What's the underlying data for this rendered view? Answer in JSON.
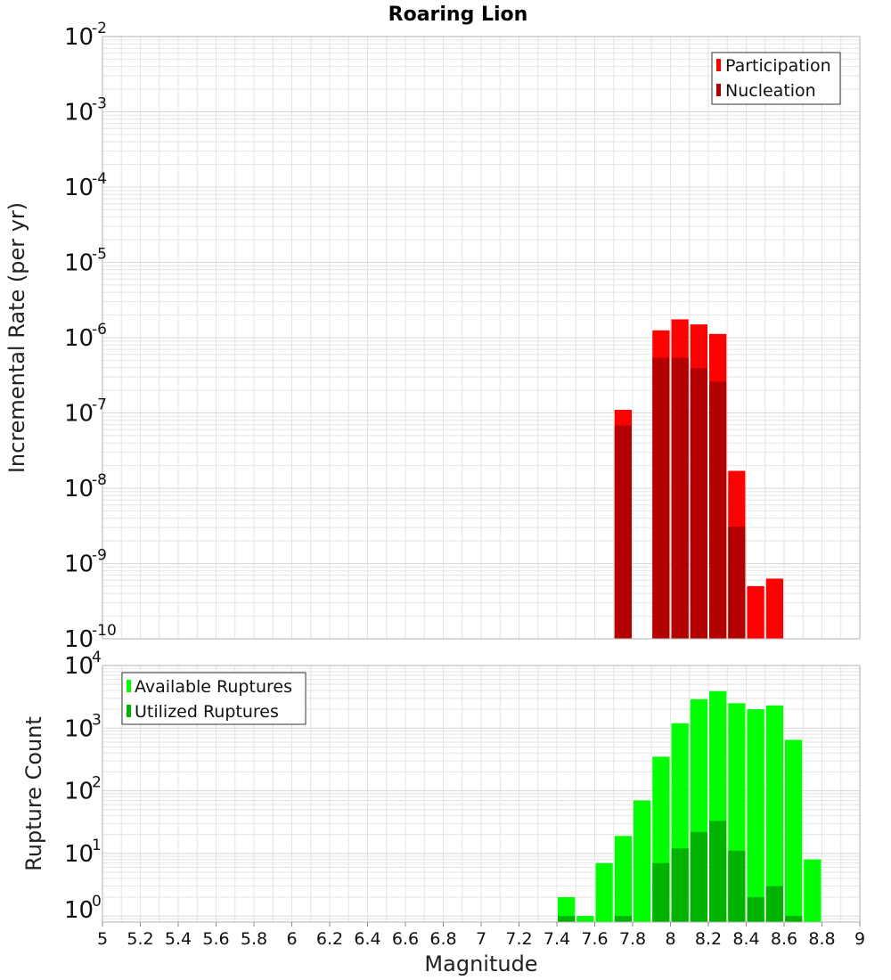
{
  "colors": {
    "participation": "#ff0000",
    "nucleation": "#b30000",
    "available": "#00ff00",
    "utilized": "#00b300",
    "grid": "#e4e4e4",
    "border": "#b0b0b0"
  },
  "chart_data": [
    {
      "id": "rate",
      "type": "bar",
      "title": "Roaring Lion",
      "ylabel": "Incremental Rate (per yr)",
      "xlabel": "",
      "yscale": "log",
      "xlim": [
        5,
        9
      ],
      "ylim": [
        1e-10,
        0.01
      ],
      "yticks": [
        {
          "base": "10",
          "exp": "-10"
        },
        {
          "base": "10",
          "exp": "-9"
        },
        {
          "base": "10",
          "exp": "-8"
        },
        {
          "base": "10",
          "exp": "-7"
        },
        {
          "base": "10",
          "exp": "-6"
        },
        {
          "base": "10",
          "exp": "-5"
        },
        {
          "base": "10",
          "exp": "-4"
        },
        {
          "base": "10",
          "exp": "-3"
        },
        {
          "base": "10",
          "exp": "-2"
        }
      ],
      "legend": {
        "position": "top-right",
        "entries": [
          "Participation",
          "Nucleation"
        ]
      },
      "series": [
        {
          "name": "Participation",
          "x": [
            7.75,
            7.95,
            8.05,
            8.15,
            8.25,
            8.35,
            8.45,
            8.55
          ],
          "values": [
            1.1e-07,
            1.25e-06,
            1.75e-06,
            1.5e-06,
            1.12e-06,
            1.7e-08,
            5e-10,
            6.3e-10
          ]
        },
        {
          "name": "Nucleation",
          "x": [
            7.75,
            7.95,
            8.05,
            8.15,
            8.25,
            8.35
          ],
          "values": [
            6.8e-08,
            5.4e-07,
            5.4e-07,
            3.9e-07,
            2.6e-07,
            3.1e-09
          ]
        }
      ]
    },
    {
      "id": "count",
      "type": "bar",
      "title": "",
      "ylabel": "Rupture Count",
      "xlabel": "Magnitude",
      "yscale": "log",
      "xlim": [
        5,
        9
      ],
      "ylim": [
        0.8,
        10000
      ],
      "yticks": [
        {
          "base": "10",
          "exp": "0"
        },
        {
          "base": "10",
          "exp": "1"
        },
        {
          "base": "10",
          "exp": "2"
        },
        {
          "base": "10",
          "exp": "3"
        },
        {
          "base": "10",
          "exp": "4"
        }
      ],
      "xticks": [
        "5",
        "5.2",
        "5.4",
        "5.6",
        "5.8",
        "6",
        "6.2",
        "6.4",
        "6.6",
        "6.8",
        "7",
        "7.2",
        "7.4",
        "7.6",
        "7.8",
        "8",
        "8.2",
        "8.4",
        "8.6",
        "8.8",
        "9"
      ],
      "legend": {
        "position": "top-left",
        "entries": [
          "Available Ruptures",
          "Utilized Ruptures"
        ]
      },
      "series": [
        {
          "name": "Available Ruptures",
          "x": [
            7.45,
            7.55,
            7.65,
            7.75,
            7.85,
            7.95,
            8.05,
            8.15,
            8.25,
            8.35,
            8.45,
            8.55,
            8.65,
            8.75
          ],
          "values": [
            2,
            1,
            7,
            19,
            70,
            350,
            1200,
            2900,
            3900,
            2500,
            2000,
            2300,
            650,
            8
          ]
        },
        {
          "name": "Utilized Ruptures",
          "x": [
            7.45,
            7.75,
            7.95,
            8.05,
            8.15,
            8.25,
            8.35,
            8.45,
            8.55,
            8.65
          ],
          "values": [
            1,
            1,
            7,
            12,
            22,
            33,
            11,
            2,
            3,
            1
          ]
        }
      ]
    }
  ]
}
